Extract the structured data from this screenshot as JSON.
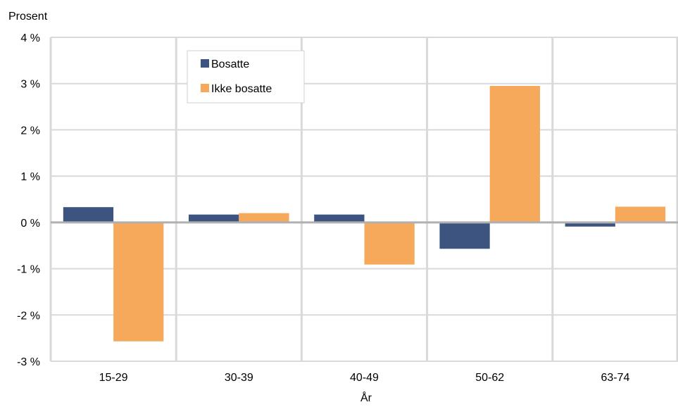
{
  "chart_data": {
    "type": "bar",
    "ylabel": "Prosent",
    "xlabel": "År",
    "categories": [
      "15-29",
      "30-39",
      "40-49",
      "50-62",
      "63-74"
    ],
    "series": [
      {
        "name": "Bosatte",
        "color": "#3e5480",
        "values": [
          0.33,
          0.17,
          0.17,
          -0.57,
          -0.09
        ]
      },
      {
        "name": "Ikke bosatte",
        "color": "#f6a95b",
        "values": [
          -2.57,
          0.2,
          -0.91,
          2.95,
          0.34
        ]
      }
    ],
    "ylim": [
      -3,
      4
    ],
    "yticks": [
      -3,
      -2,
      -1,
      0,
      1,
      2,
      3,
      4
    ],
    "ytick_labels": [
      "-3 %",
      "-2 %",
      "-1 %",
      "0 %",
      "1 %",
      "2 %",
      "3 %",
      "4 %"
    ],
    "grid": true,
    "legend_position": "top-left"
  }
}
